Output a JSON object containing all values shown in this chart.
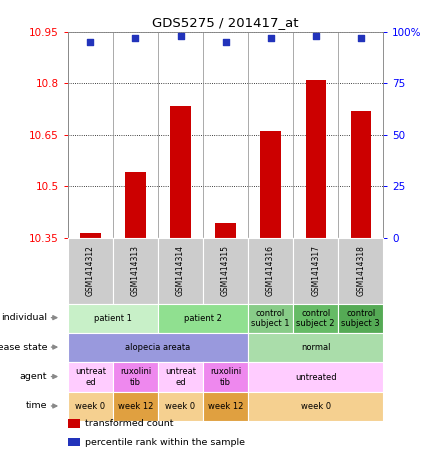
{
  "title": "GDS5275 / 201417_at",
  "samples": [
    "GSM1414312",
    "GSM1414313",
    "GSM1414314",
    "GSM1414315",
    "GSM1414316",
    "GSM1414317",
    "GSM1414318"
  ],
  "bar_values": [
    10.363,
    10.543,
    10.735,
    10.393,
    10.66,
    10.81,
    10.72
  ],
  "dot_values": [
    95,
    97,
    98,
    95,
    97,
    98,
    97
  ],
  "ylim_left": [
    10.35,
    10.95
  ],
  "ylim_right": [
    0,
    100
  ],
  "yticks_left": [
    10.35,
    10.5,
    10.65,
    10.8,
    10.95
  ],
  "yticks_right": [
    0,
    25,
    50,
    75,
    100
  ],
  "ytick_labels_right": [
    "0",
    "25",
    "50",
    "75",
    "100%"
  ],
  "bar_color": "#cc0000",
  "dot_color": "#2233bb",
  "annotation_rows": [
    {
      "label": "individual",
      "cells": [
        {
          "text": "patient 1",
          "span": 2,
          "color": "#c8f0c8"
        },
        {
          "text": "patient 2",
          "span": 2,
          "color": "#90e090"
        },
        {
          "text": "control\nsubject 1",
          "span": 1,
          "color": "#88cc88"
        },
        {
          "text": "control\nsubject 2",
          "span": 1,
          "color": "#66bb66"
        },
        {
          "text": "control\nsubject 3",
          "span": 1,
          "color": "#55aa55"
        }
      ]
    },
    {
      "label": "disease state",
      "cells": [
        {
          "text": "alopecia areata",
          "span": 4,
          "color": "#9999dd"
        },
        {
          "text": "normal",
          "span": 3,
          "color": "#aaddaa"
        }
      ]
    },
    {
      "label": "agent",
      "cells": [
        {
          "text": "untreat\ned",
          "span": 1,
          "color": "#ffccff"
        },
        {
          "text": "ruxolini\ntib",
          "span": 1,
          "color": "#ee88ee"
        },
        {
          "text": "untreat\ned",
          "span": 1,
          "color": "#ffccff"
        },
        {
          "text": "ruxolini\ntib",
          "span": 1,
          "color": "#ee88ee"
        },
        {
          "text": "untreated",
          "span": 3,
          "color": "#ffccff"
        }
      ]
    },
    {
      "label": "time",
      "cells": [
        {
          "text": "week 0",
          "span": 1,
          "color": "#f5d090"
        },
        {
          "text": "week 12",
          "span": 1,
          "color": "#e0a040"
        },
        {
          "text": "week 0",
          "span": 1,
          "color": "#f5d090"
        },
        {
          "text": "week 12",
          "span": 1,
          "color": "#e0a040"
        },
        {
          "text": "week 0",
          "span": 3,
          "color": "#f5d090"
        }
      ]
    }
  ],
  "legend": [
    {
      "color": "#cc0000",
      "label": "transformed count"
    },
    {
      "color": "#2233bb",
      "label": "percentile rank within the sample"
    }
  ],
  "sample_bg": "#cccccc"
}
